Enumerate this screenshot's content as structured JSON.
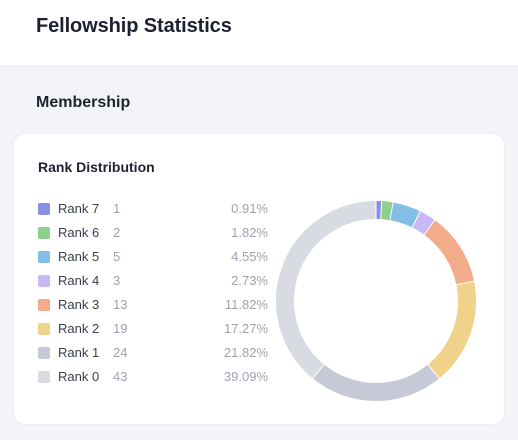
{
  "header": {
    "title": "Fellowship Statistics"
  },
  "section": {
    "title": "Membership"
  },
  "card": {
    "title": "Rank Distribution"
  },
  "ranks": [
    {
      "label": "Rank 7",
      "count": "1",
      "percent": "0.91%",
      "value": 0.91,
      "color": "#8a8fe6"
    },
    {
      "label": "Rank 6",
      "count": "2",
      "percent": "1.82%",
      "value": 1.82,
      "color": "#8dd08e"
    },
    {
      "label": "Rank 5",
      "count": "5",
      "percent": "4.55%",
      "value": 4.55,
      "color": "#84bde8"
    },
    {
      "label": "Rank 4",
      "count": "3",
      "percent": "2.73%",
      "value": 2.73,
      "color": "#c8b8f5"
    },
    {
      "label": "Rank 3",
      "count": "13",
      "percent": "11.82%",
      "value": 11.82,
      "color": "#f3ab8a"
    },
    {
      "label": "Rank 2",
      "count": "19",
      "percent": "17.27%",
      "value": 17.27,
      "color": "#f1d28a"
    },
    {
      "label": "Rank 1",
      "count": "24",
      "percent": "21.82%",
      "value": 21.82,
      "color": "#c7cad6"
    },
    {
      "label": "Rank 0",
      "count": "43",
      "percent": "39.09%",
      "value": 39.09,
      "color": "#d9dbe3"
    }
  ]
}
